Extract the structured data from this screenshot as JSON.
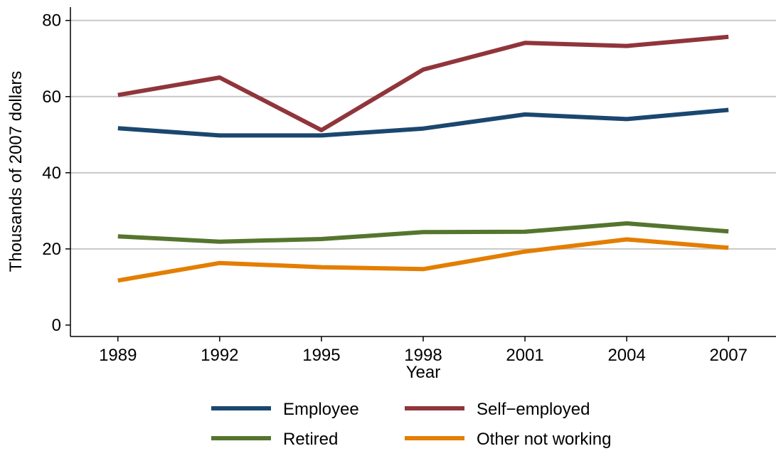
{
  "chart_data": {
    "type": "line",
    "title": "",
    "xlabel": "Year",
    "ylabel": "Thousands of 2007 dollars",
    "x": [
      1989,
      1992,
      1995,
      1998,
      2001,
      2004,
      2007
    ],
    "xticks": [
      "1989",
      "1992",
      "1995",
      "1998",
      "2001",
      "2004",
      "2007"
    ],
    "yticks": [
      0,
      20,
      40,
      60,
      80
    ],
    "ylim": [
      -3,
      83.5
    ],
    "xlim": [
      1987.6,
      2008.4
    ],
    "grid": true,
    "legend_position": "bottom",
    "series": [
      {
        "name": "Employee",
        "color": "#1a476f",
        "values": [
          51.7,
          49.8,
          49.8,
          51.6,
          55.3,
          54.1,
          56.5
        ]
      },
      {
        "name": "Self−employed",
        "color": "#90353b",
        "values": [
          60.4,
          65.0,
          51.2,
          67.1,
          74.1,
          73.3,
          75.7
        ]
      },
      {
        "name": "Retired",
        "color": "#55752f",
        "values": [
          23.3,
          21.9,
          22.6,
          24.4,
          24.5,
          26.7,
          24.6
        ]
      },
      {
        "name": "Other not working",
        "color": "#e37e00",
        "values": [
          11.7,
          16.3,
          15.2,
          14.7,
          19.3,
          22.5,
          20.3
        ]
      }
    ]
  }
}
